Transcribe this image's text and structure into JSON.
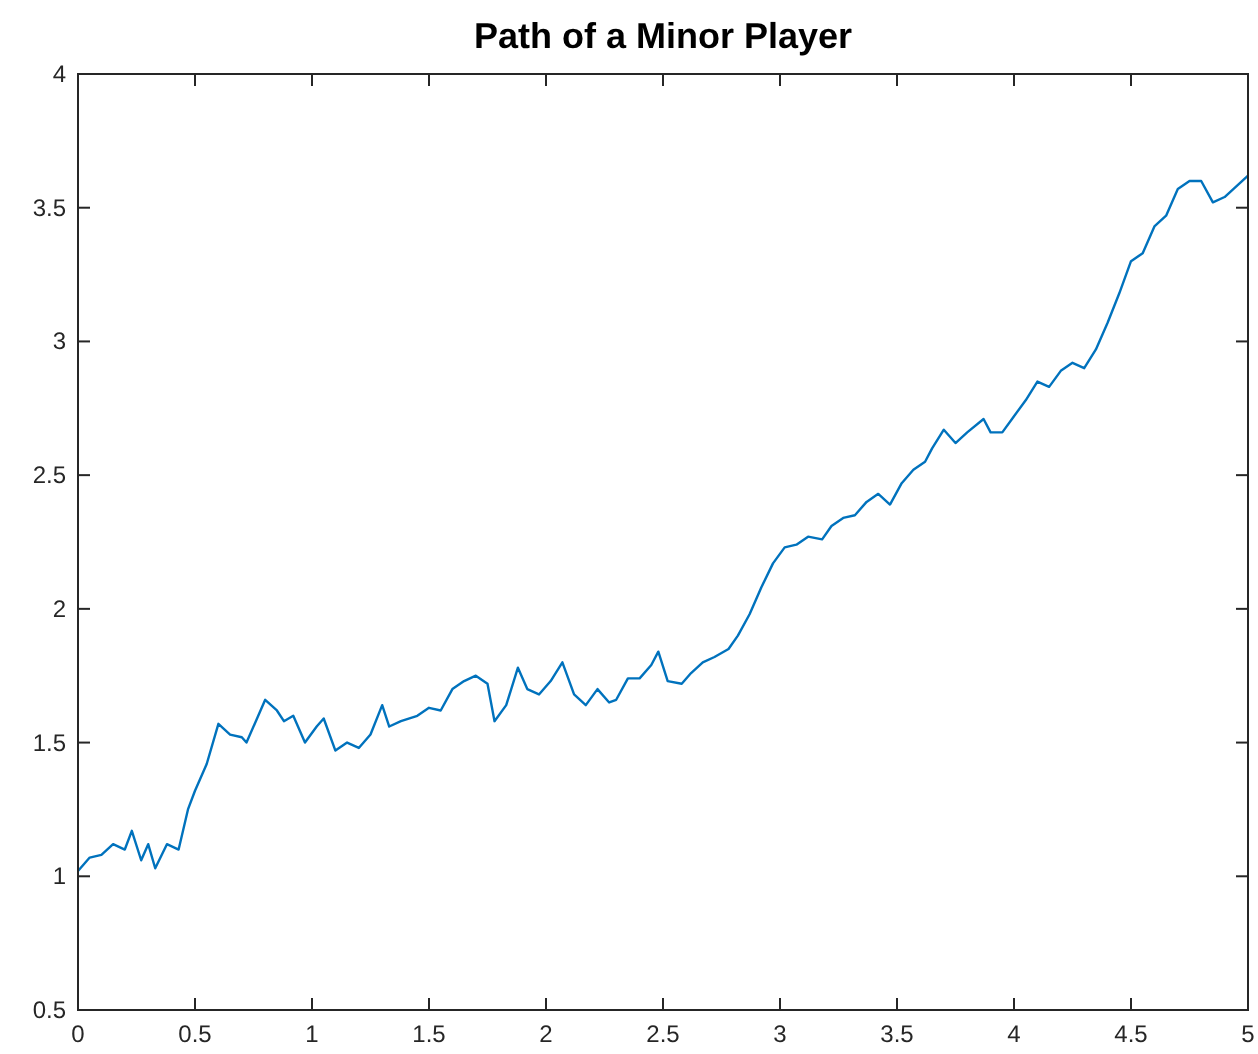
{
  "chart_data": {
    "type": "line",
    "title": "Path of a Minor Player",
    "xlim": [
      0,
      5
    ],
    "ylim": [
      0.5,
      4
    ],
    "xticks": [
      0,
      0.5,
      1,
      1.5,
      2,
      2.5,
      3,
      3.5,
      4,
      4.5,
      5
    ],
    "yticks": [
      0.5,
      1,
      1.5,
      2,
      2.5,
      3,
      3.5,
      4
    ],
    "grid": false,
    "series": [
      {
        "color": "#0072bd",
        "x": [
          0,
          0.05,
          0.1,
          0.15,
          0.2,
          0.23,
          0.27,
          0.3,
          0.33,
          0.38,
          0.43,
          0.47,
          0.5,
          0.55,
          0.6,
          0.65,
          0.7,
          0.72,
          0.76,
          0.8,
          0.85,
          0.88,
          0.92,
          0.97,
          1.02,
          1.05,
          1.1,
          1.15,
          1.2,
          1.25,
          1.3,
          1.33,
          1.38,
          1.45,
          1.5,
          1.55,
          1.6,
          1.65,
          1.7,
          1.75,
          1.78,
          1.83,
          1.88,
          1.92,
          1.97,
          2.02,
          2.07,
          2.12,
          2.17,
          2.22,
          2.27,
          2.3,
          2.35,
          2.4,
          2.45,
          2.48,
          2.52,
          2.58,
          2.62,
          2.67,
          2.72,
          2.78,
          2.82,
          2.87,
          2.92,
          2.97,
          3.02,
          3.07,
          3.12,
          3.18,
          3.22,
          3.27,
          3.32,
          3.37,
          3.42,
          3.47,
          3.52,
          3.57,
          3.62,
          3.65,
          3.7,
          3.75,
          3.8,
          3.87,
          3.9,
          3.95,
          4,
          4.05,
          4.1,
          4.15,
          4.2,
          4.25,
          4.3,
          4.35,
          4.4,
          4.45,
          4.5,
          4.55,
          4.6,
          4.65,
          4.7,
          4.75,
          4.8,
          4.85,
          4.9,
          4.95,
          5
        ],
        "values": [
          1.02,
          1.07,
          1.08,
          1.12,
          1.1,
          1.17,
          1.06,
          1.12,
          1.03,
          1.12,
          1.1,
          1.25,
          1.32,
          1.42,
          1.57,
          1.53,
          1.52,
          1.5,
          1.58,
          1.66,
          1.62,
          1.58,
          1.6,
          1.5,
          1.56,
          1.59,
          1.47,
          1.5,
          1.48,
          1.53,
          1.64,
          1.56,
          1.58,
          1.6,
          1.63,
          1.62,
          1.7,
          1.73,
          1.75,
          1.72,
          1.58,
          1.64,
          1.78,
          1.7,
          1.68,
          1.73,
          1.8,
          1.68,
          1.64,
          1.7,
          1.65,
          1.66,
          1.74,
          1.74,
          1.79,
          1.84,
          1.73,
          1.72,
          1.76,
          1.8,
          1.82,
          1.85,
          1.9,
          1.98,
          2.08,
          2.17,
          2.23,
          2.24,
          2.27,
          2.26,
          2.31,
          2.34,
          2.35,
          2.4,
          2.43,
          2.39,
          2.47,
          2.52,
          2.55,
          2.6,
          2.67,
          2.62,
          2.66,
          2.71,
          2.66,
          2.66,
          2.72,
          2.78,
          2.85,
          2.83,
          2.89,
          2.92,
          2.9,
          2.97,
          3.07,
          3.18,
          3.3,
          3.33,
          3.43,
          3.47,
          3.57,
          3.6,
          3.6,
          3.52,
          3.54,
          3.58,
          3.62
        ]
      }
    ]
  }
}
